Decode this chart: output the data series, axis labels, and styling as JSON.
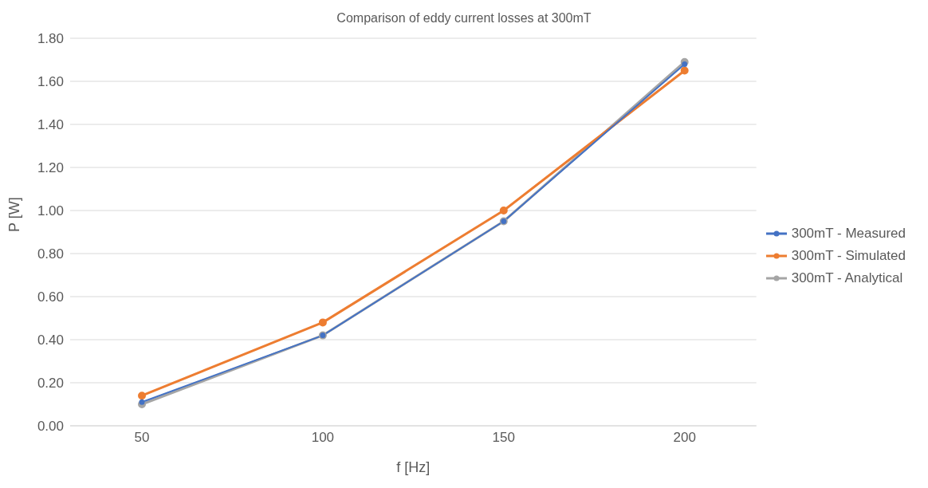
{
  "chart_data": {
    "type": "line",
    "title": "Comparison of eddy current losses at 300mT",
    "xlabel": "f [Hz]",
    "ylabel": "P [W]",
    "categories": [
      "50",
      "100",
      "150",
      "200"
    ],
    "series": [
      {
        "name": "300mT - Measured",
        "color": "#4472c4",
        "values": [
          0.11,
          0.42,
          0.95,
          1.68
        ]
      },
      {
        "name": "300mT - Simulated",
        "color": "#ed7d31",
        "values": [
          0.14,
          0.48,
          1.0,
          1.65
        ]
      },
      {
        "name": "300mT - Analytical",
        "color": "#a5a5a5",
        "values": [
          0.1,
          0.42,
          0.95,
          1.69
        ]
      }
    ],
    "ylim": [
      0,
      1.8
    ],
    "yticks": [
      {
        "value": 0,
        "label": "0.00"
      },
      {
        "value": 0.2,
        "label": "0.20"
      },
      {
        "value": 0.4,
        "label": "0.40"
      },
      {
        "value": 0.6,
        "label": "0.60"
      },
      {
        "value": 0.8,
        "label": "0.80"
      },
      {
        "value": 1,
        "label": "1.00"
      },
      {
        "value": 1.2,
        "label": "1.20"
      },
      {
        "value": 1.4,
        "label": "1.40"
      },
      {
        "value": 1.6,
        "label": "1.60"
      },
      {
        "value": 1.8,
        "label": "1.80"
      }
    ],
    "grid": "y",
    "legend": "right",
    "marker": "circle",
    "line_style": "solid"
  }
}
